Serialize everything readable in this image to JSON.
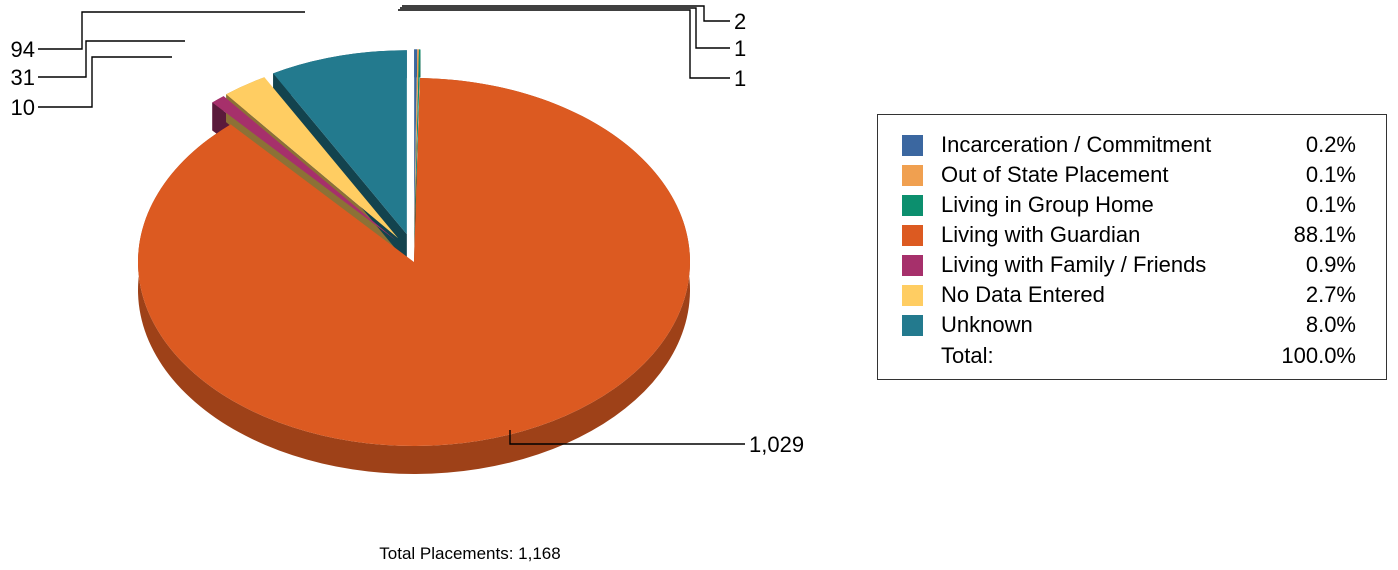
{
  "chart_data": {
    "type": "pie",
    "style": "3d-exploded",
    "categories": [
      "Incarceration / Commitment",
      "Out of State Placement",
      "Living in Group Home",
      "Living with Guardian",
      "Living with Family / Friends",
      "No Data Entered",
      "Unknown"
    ],
    "values": [
      2,
      1,
      1,
      1029,
      10,
      31,
      94
    ],
    "value_labels": [
      "2",
      "1",
      "1",
      "1,029",
      "10",
      "31",
      "94"
    ],
    "percent_labels": [
      "0.2%",
      "0.1%",
      "0.1%",
      "88.1%",
      "0.9%",
      "2.7%",
      "8.0%"
    ],
    "colors": [
      "#3b67a0",
      "#f0a050",
      "#0c8f6e",
      "#dc5a21",
      "#a6306b",
      "#ffcd62",
      "#237a8e"
    ],
    "legend_placement": "right",
    "total_label": "Total:",
    "total_percent": "100.0%"
  },
  "footer": {
    "text": "Total Placements: 1,168"
  }
}
